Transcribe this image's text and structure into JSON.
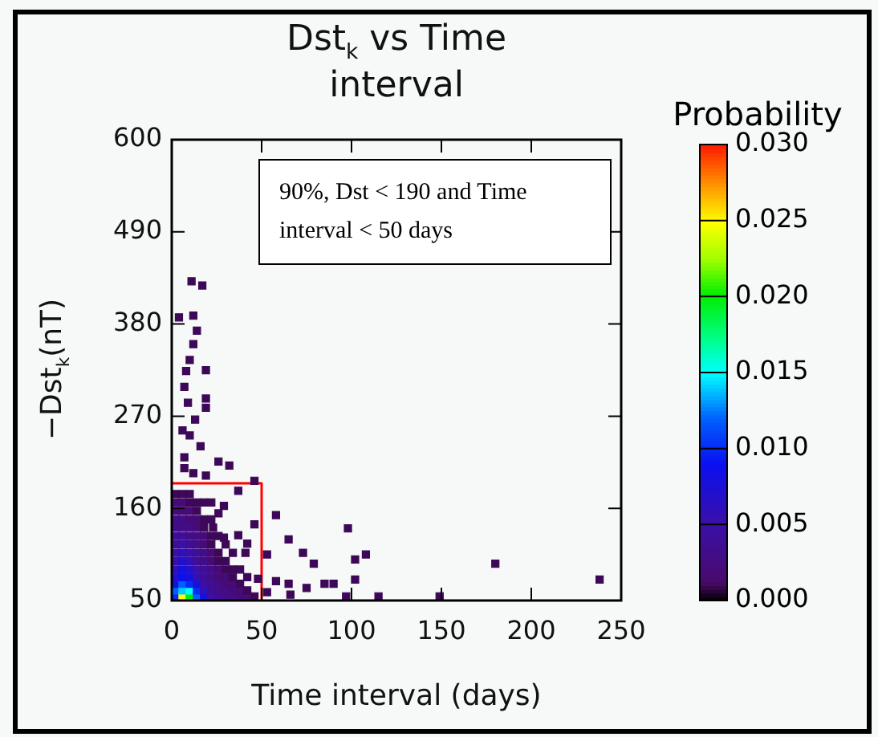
{
  "chart_data": {
    "type": "scatter",
    "title": "Dst$_{k}$ vs Time interval",
    "xlabel": "Time interval (days)",
    "ylabel": "−Dst$_{k}$(nT)",
    "clabel": "Probability",
    "xlim": [
      0,
      250
    ],
    "xticks": [
      0,
      50,
      100,
      150,
      200,
      250
    ],
    "ylim": [
      50,
      600
    ],
    "yticks": [
      50,
      160,
      270,
      380,
      490,
      600
    ],
    "clim": [
      0,
      0.03
    ],
    "cticks": [
      {
        "value": 0,
        "label": "0.000"
      },
      {
        "value": 0.005,
        "label": "0.005"
      },
      {
        "value": 0.01,
        "label": "0.010"
      },
      {
        "value": 0.015,
        "label": "0.015"
      },
      {
        "value": 0.02,
        "label": "0.020"
      },
      {
        "value": 0.025,
        "label": "0.025"
      },
      {
        "value": 0.03,
        "label": "0.030"
      }
    ],
    "marker": "square",
    "grid": false,
    "legend": false,
    "annotations": [
      "90%, Dst < 190 and Time interval < 50 days"
    ],
    "series": [
      {
        "x": [
          2,
          2,
          2,
          2,
          2,
          2,
          2,
          2,
          2,
          2,
          2,
          2,
          2,
          2,
          6,
          6,
          6,
          6,
          6,
          6,
          6,
          6,
          6,
          6,
          6,
          6,
          6,
          6,
          10,
          10,
          10,
          10,
          10,
          10,
          10,
          10,
          10,
          10,
          10,
          10,
          10,
          10,
          14,
          14,
          14,
          14,
          14,
          14,
          14,
          14,
          14,
          14,
          14,
          14,
          14,
          18,
          18,
          18,
          18,
          18,
          18,
          18,
          18,
          18,
          18,
          18,
          18,
          22,
          22,
          22,
          22,
          22,
          22,
          22,
          22,
          22,
          22,
          26,
          26,
          26,
          26,
          26,
          26,
          26,
          26,
          30,
          30,
          30,
          30,
          30,
          30,
          30,
          34,
          34,
          34,
          34,
          34,
          34,
          38,
          38,
          38,
          38,
          42,
          42,
          42,
          46,
          11,
          17,
          4,
          12,
          14,
          12,
          10,
          8,
          19,
          7,
          19,
          9,
          19,
          13,
          6,
          10,
          16,
          7,
          26,
          32,
          7,
          12,
          19,
          46,
          37,
          22,
          29,
          26,
          23,
          29,
          46,
          58,
          37,
          41,
          65,
          73,
          79,
          53,
          98,
          85,
          90,
          75,
          65,
          66,
          48,
          58,
          53,
          42,
          108,
          102,
          180,
          238,
          115,
          97,
          149,
          102
        ],
        "values": [
          55,
          62,
          70,
          78,
          87,
          97,
          107,
          117,
          127,
          137,
          147,
          157,
          167,
          177,
          55,
          62,
          70,
          78,
          87,
          97,
          107,
          117,
          127,
          137,
          147,
          157,
          167,
          177,
          55,
          62,
          70,
          78,
          87,
          97,
          107,
          117,
          127,
          137,
          147,
          157,
          167,
          177,
          55,
          62,
          70,
          78,
          87,
          97,
          107,
          117,
          127,
          137,
          147,
          157,
          167,
          55,
          62,
          70,
          78,
          87,
          97,
          107,
          117,
          127,
          137,
          147,
          167,
          55,
          62,
          70,
          78,
          87,
          97,
          107,
          117,
          127,
          147,
          55,
          62,
          70,
          78,
          87,
          97,
          107,
          127,
          55,
          62,
          70,
          78,
          87,
          97,
          117,
          55,
          62,
          70,
          78,
          87,
          107,
          55,
          62,
          70,
          87,
          55,
          62,
          78,
          55,
          431,
          426,
          388,
          390,
          372,
          356,
          337,
          324,
          325,
          305,
          291,
          286,
          280,
          266,
          253,
          247,
          234,
          221,
          216,
          211,
          208,
          202,
          199,
          193,
          181,
          167,
          163,
          154,
          137,
          125,
          141,
          152,
          128,
          107,
          123,
          107,
          94,
          105,
          136,
          70,
          70,
          65,
          70,
          57,
          76,
          73,
          60,
          118,
          105,
          99,
          94,
          75,
          55,
          55,
          55,
          75
        ],
        "cvalues": [
          0.01,
          0.012,
          0.008,
          0.007,
          0.006,
          0.005,
          0.005,
          0.004,
          0.004,
          0.003,
          0.003,
          0.002,
          0.002,
          0.001,
          0.025,
          0.014,
          0.012,
          0.009,
          0.008,
          0.007,
          0.006,
          0.005,
          0.004,
          0.003,
          0.003,
          0.002,
          0.002,
          0.001,
          0.02,
          0.015,
          0.01,
          0.008,
          0.007,
          0.006,
          0.005,
          0.004,
          0.003,
          0.003,
          0.002,
          0.002,
          0.001,
          0.001,
          0.012,
          0.01,
          0.008,
          0.006,
          0.005,
          0.004,
          0.004,
          0.003,
          0.003,
          0.002,
          0.002,
          0.001,
          0.001,
          0.008,
          0.006,
          0.005,
          0.004,
          0.004,
          0.003,
          0.003,
          0.002,
          0.002,
          0.001,
          0.001,
          0.001,
          0.005,
          0.004,
          0.004,
          0.003,
          0.003,
          0.002,
          0.002,
          0.001,
          0.001,
          0.001,
          0.004,
          0.003,
          0.003,
          0.002,
          0.002,
          0.001,
          0.001,
          0.001,
          0.003,
          0.003,
          0.002,
          0.002,
          0.001,
          0.001,
          0.001,
          0.003,
          0.002,
          0.002,
          0.001,
          0.001,
          0.001,
          0.002,
          0.002,
          0.001,
          0.001,
          0.002,
          0.001,
          0.001,
          0.001,
          0.001,
          0.001,
          0.001,
          0.001,
          0.001,
          0.001,
          0.001,
          0.001,
          0.001,
          0.001,
          0.001,
          0.001,
          0.001,
          0.001,
          0.001,
          0.001,
          0.001,
          0.001,
          0.001,
          0.001,
          0.001,
          0.001,
          0.001,
          0.001,
          0.001,
          0.001,
          0.001,
          0.001,
          0.001,
          0.001,
          0.001,
          0.001,
          0.001,
          0.001,
          0.001,
          0.001,
          0.001,
          0.001,
          0.001,
          0.001,
          0.001,
          0.001,
          0.001,
          0.001,
          0.001,
          0.001,
          0.001,
          0.001,
          0.001,
          0.001,
          0.001,
          0.001,
          0.001,
          0.001,
          0.001,
          0.001
        ],
        "colors": [
          "#072bf5",
          "#0060ff",
          "#1610de",
          "#2310cb",
          "#2f10b9",
          "#3a10a6",
          "#3a10a6",
          "#3f0e97",
          "#3f0e97",
          "#430d87",
          "#430d87",
          "#470b77",
          "#470b77",
          "#3e0858",
          "#ffff00",
          "#00caff",
          "#0060ff",
          "#0a10f0",
          "#1610de",
          "#2310cb",
          "#2f10b9",
          "#3a10a6",
          "#3f0e97",
          "#430d87",
          "#430d87",
          "#470b77",
          "#470b77",
          "#3e0858",
          "#00ef05",
          "#00ffff",
          "#072bf5",
          "#1610de",
          "#2310cb",
          "#2f10b9",
          "#3a10a6",
          "#3f0e97",
          "#430d87",
          "#430d87",
          "#470b77",
          "#470b77",
          "#3e0858",
          "#3e0858",
          "#0060ff",
          "#072bf5",
          "#1610de",
          "#2f10b9",
          "#3a10a6",
          "#3f0e97",
          "#3f0e97",
          "#430d87",
          "#430d87",
          "#470b77",
          "#470b77",
          "#3e0858",
          "#3e0858",
          "#1610de",
          "#2f10b9",
          "#3a10a6",
          "#3f0e97",
          "#3f0e97",
          "#430d87",
          "#430d87",
          "#470b77",
          "#470b77",
          "#3e0858",
          "#3e0858",
          "#3e0858",
          "#3a10a6",
          "#3f0e97",
          "#3f0e97",
          "#430d87",
          "#430d87",
          "#470b77",
          "#470b77",
          "#3e0858",
          "#3e0858",
          "#3e0858",
          "#3f0e97",
          "#430d87",
          "#430d87",
          "#470b77",
          "#470b77",
          "#3e0858",
          "#3e0858",
          "#3e0858",
          "#430d87",
          "#430d87",
          "#470b77",
          "#470b77",
          "#3e0858",
          "#3e0858",
          "#3e0858",
          "#430d87",
          "#470b77",
          "#470b77",
          "#3e0858",
          "#3e0858",
          "#3e0858",
          "#470b77",
          "#470b77",
          "#3e0858",
          "#3e0858",
          "#470b77",
          "#3e0858",
          "#3e0858",
          "#3e0858",
          "#3e0858",
          "#3e0858",
          "#3e0858",
          "#3e0858",
          "#3e0858",
          "#3e0858",
          "#3e0858",
          "#3e0858",
          "#3e0858",
          "#3e0858",
          "#3e0858",
          "#3e0858",
          "#3e0858",
          "#3e0858",
          "#3e0858",
          "#3e0858",
          "#3e0858",
          "#3e0858",
          "#3e0858",
          "#3e0858",
          "#3e0858",
          "#3e0858",
          "#3e0858",
          "#3e0858",
          "#3e0858",
          "#3e0858",
          "#3e0858",
          "#3e0858",
          "#3e0858",
          "#3e0858",
          "#3e0858",
          "#3e0858",
          "#3e0858",
          "#3e0858",
          "#3e0858",
          "#3e0858",
          "#3e0858",
          "#3e0858",
          "#3e0858",
          "#3e0858",
          "#3e0858",
          "#3e0858",
          "#3e0858",
          "#3e0858",
          "#3e0858",
          "#3e0858",
          "#3e0858",
          "#3e0858",
          "#3e0858",
          "#3e0858",
          "#3e0858",
          "#3e0858",
          "#3e0858",
          "#3e0858",
          "#3e0858",
          "#3e0858"
        ]
      },
      {
        "type": "line",
        "color": "#ff0000",
        "marker": "none",
        "x": [
          0,
          50,
          50
        ],
        "values": [
          190,
          190,
          50
        ]
      }
    ]
  }
}
